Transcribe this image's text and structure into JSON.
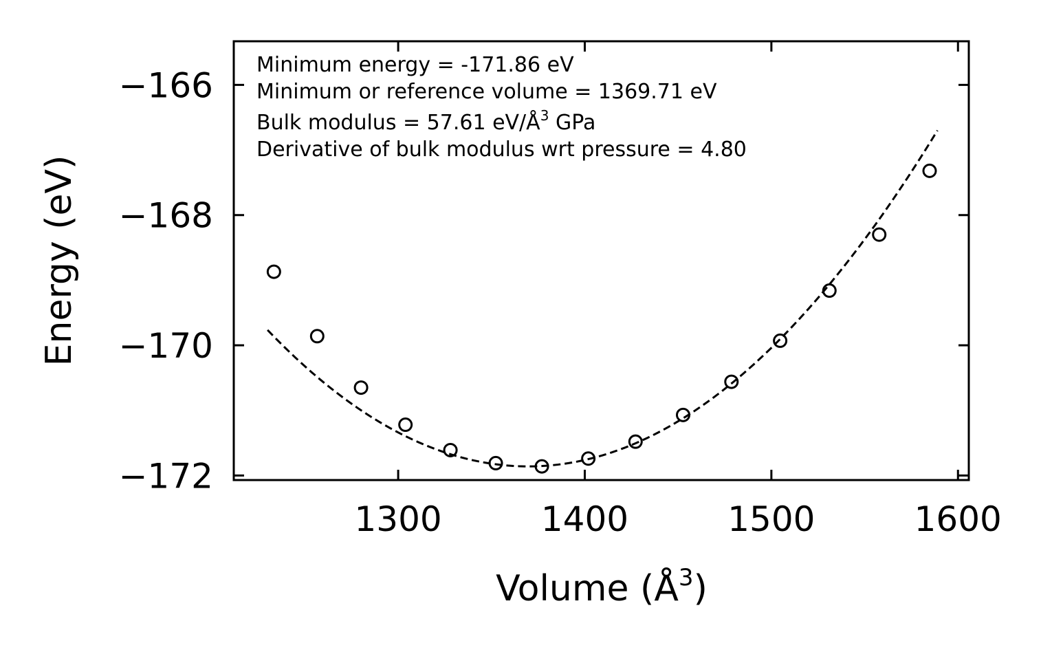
{
  "chart_data": {
    "type": "scatter",
    "title": "",
    "xlabel": "Volume (Å3)",
    "xlabel_base": "Volume (Å",
    "xlabel_sup": "3",
    "xlabel_end": ")",
    "ylabel": "Energy (eV)",
    "xlim": [
      1211.9,
      1605.8
    ],
    "ylim": [
      -172.07,
      -165.33
    ],
    "xticks": [
      1300,
      1400,
      1500,
      1600
    ],
    "xtick_labels": [
      "1300",
      "1400",
      "1500",
      "1600"
    ],
    "yticks": [
      -166,
      -168,
      -170,
      -172
    ],
    "ytick_labels": [
      "−166",
      "−168",
      "−170",
      "−172"
    ],
    "grid": false,
    "series": [
      {
        "name": "data",
        "marker": "open-circle",
        "color": "#000000",
        "x": [
          1233.4,
          1256.6,
          1280.1,
          1303.9,
          1328.0,
          1352.3,
          1377.0,
          1401.9,
          1427.2,
          1452.7,
          1478.6,
          1504.7,
          1531.1,
          1557.8,
          1584.8
        ],
        "y": [
          -168.87,
          -169.86,
          -170.65,
          -171.22,
          -171.61,
          -171.81,
          -171.86,
          -171.74,
          -171.48,
          -171.07,
          -170.56,
          -169.93,
          -169.16,
          -168.3,
          -167.32
        ]
      },
      {
        "name": "fit",
        "line_style": "dashed",
        "color": "#000000",
        "minimum_volume": 1369.71,
        "minimum_energy": -171.86,
        "x_range": [
          1230.0,
          1589.0
        ]
      }
    ],
    "annotations": [
      "Minimum energy = -171.86 eV",
      "Minimum or reference volume = 1369.71 eV",
      "Bulk modulus = 57.61 eV/Å3 GPa",
      "Derivative of bulk modulus wrt pressure = 4.80"
    ],
    "annotation_parts": {
      "bulk_base": "Bulk modulus = 57.61 eV/Å",
      "bulk_sup": "3",
      "bulk_end": " GPa"
    }
  }
}
